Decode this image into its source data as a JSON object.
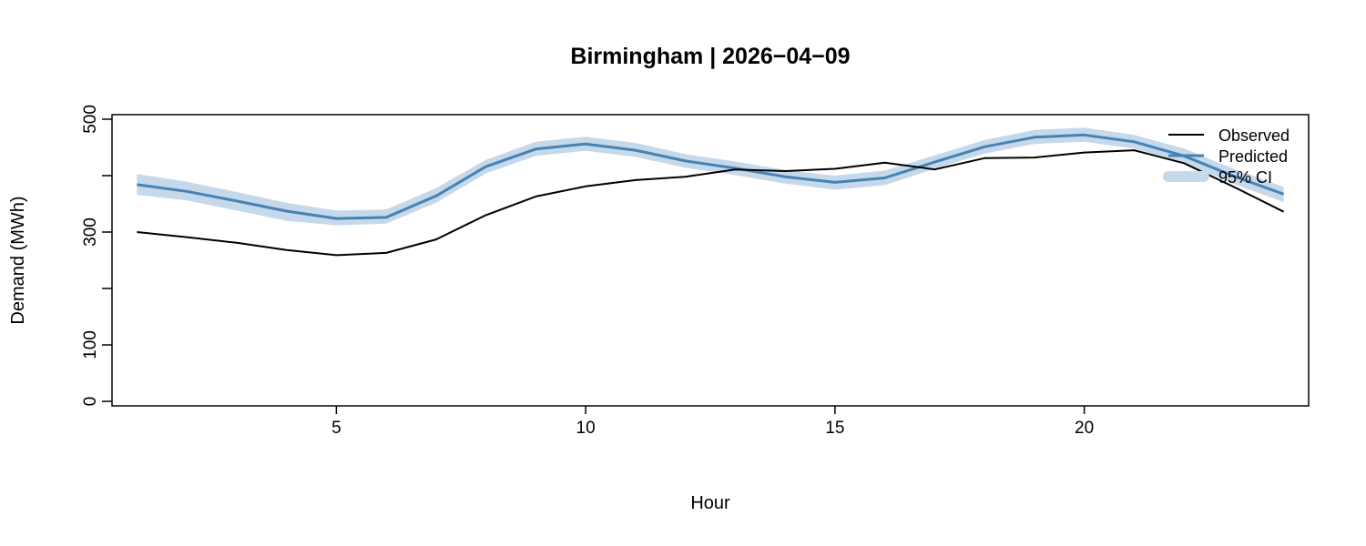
{
  "chart_data": {
    "type": "line",
    "title": "Birmingham  |  2026−04−09",
    "xlabel": "Hour",
    "ylabel": "Demand (MWh)",
    "xlim": [
      0.5,
      24.5
    ],
    "ylim": [
      -8,
      508
    ],
    "x_ticks": [
      5,
      10,
      15,
      20
    ],
    "y_ticks": [
      0,
      100,
      200,
      300,
      400,
      500
    ],
    "y_tick_labels": [
      "0",
      "100",
      "",
      "300",
      "",
      "500"
    ],
    "grid": false,
    "legend_position": "top-right",
    "x": [
      1,
      2,
      3,
      4,
      5,
      6,
      7,
      8,
      9,
      10,
      11,
      12,
      13,
      14,
      15,
      16,
      17,
      18,
      19,
      20,
      21,
      22,
      23,
      24
    ],
    "series": [
      {
        "name": "Observed",
        "color": "#000000",
        "values": [
          300,
          291,
          281,
          268,
          259,
          263,
          287,
          330,
          363,
          381,
          392,
          398,
          411,
          408,
          412,
          423,
          411,
          431,
          432,
          441,
          445,
          422,
          380,
          336
        ]
      },
      {
        "name": "Predicted",
        "color": "#4682b4",
        "values": [
          384,
          372,
          355,
          337,
          324,
          326,
          364,
          416,
          447,
          456,
          445,
          426,
          413,
          398,
          388,
          396,
          424,
          451,
          468,
          472,
          460,
          435,
          399,
          367
        ]
      }
    ],
    "ci": {
      "name": "95% CI",
      "color": "#c6d9eb",
      "lower": [
        366,
        356,
        338,
        320,
        312,
        315,
        352,
        404,
        435,
        444,
        433,
        414,
        401,
        386,
        375,
        383,
        412,
        439,
        456,
        460,
        448,
        423,
        385,
        353
      ],
      "upper": [
        403,
        389,
        371,
        352,
        338,
        340,
        378,
        428,
        460,
        469,
        458,
        438,
        425,
        410,
        400,
        409,
        436,
        463,
        481,
        485,
        472,
        448,
        412,
        380
      ]
    }
  }
}
